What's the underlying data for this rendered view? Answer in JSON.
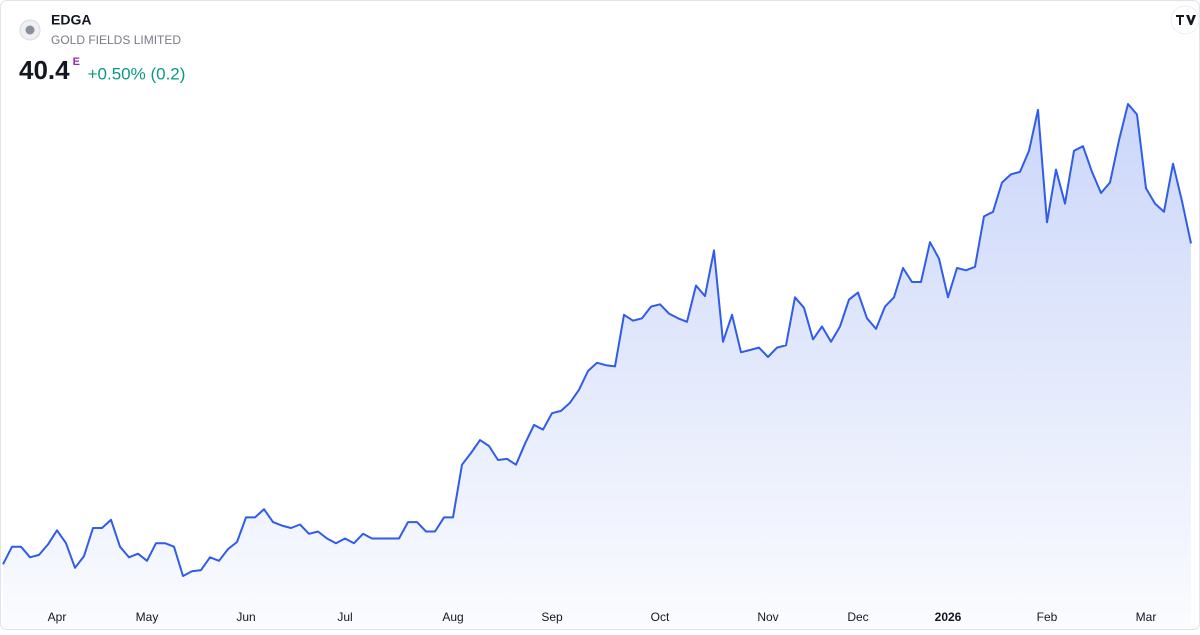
{
  "chart_data": {
    "type": "area",
    "title": "EDGA",
    "subtitle": "GOLD FIELDS LIMITED",
    "price_flag": "E",
    "change_label": "+0.50% (0.2)",
    "color": "#2f5ce8",
    "categories": [
      null,
      null,
      null,
      null,
      null,
      null,
      "Apr",
      null,
      null,
      null,
      null,
      null,
      null,
      null,
      null,
      null,
      "May",
      null,
      null,
      null,
      null,
      null,
      null,
      null,
      null,
      null,
      null,
      "Jun",
      null,
      null,
      null,
      null,
      null,
      null,
      null,
      null,
      null,
      null,
      "Jul",
      null,
      null,
      null,
      null,
      null,
      null,
      null,
      null,
      null,
      null,
      null,
      "Aug",
      null,
      null,
      null,
      null,
      null,
      null,
      null,
      null,
      null,
      null,
      "Sep",
      null,
      null,
      null,
      null,
      null,
      null,
      null,
      null,
      null,
      null,
      null,
      "Oct",
      null,
      null,
      null,
      null,
      null,
      null,
      null,
      null,
      null,
      null,
      null,
      "Nov",
      null,
      null,
      null,
      null,
      null,
      null,
      null,
      null,
      null,
      "Dec",
      null,
      null,
      null,
      null,
      null,
      null,
      null,
      null,
      null,
      "2026",
      null,
      null,
      null,
      null,
      null,
      null,
      null,
      null,
      null,
      null,
      "Feb",
      null,
      null,
      null,
      null,
      null,
      null,
      null,
      null,
      null,
      null,
      "Mar",
      null,
      null,
      null,
      null,
      null
    ],
    "values": [
      13.0,
      14.5,
      14.5,
      13.6,
      13.8,
      14.7,
      15.9,
      14.8,
      12.7,
      13.7,
      16.1,
      16.1,
      16.8,
      14.5,
      13.6,
      13.9,
      13.3,
      14.8,
      14.8,
      14.5,
      12.0,
      12.4,
      12.5,
      13.6,
      13.3,
      14.3,
      14.9,
      17.0,
      17.0,
      17.7,
      16.6,
      16.3,
      16.1,
      16.4,
      15.6,
      15.8,
      15.2,
      14.8,
      15.2,
      14.8,
      15.6,
      15.2,
      15.2,
      15.2,
      15.2,
      16.6,
      16.6,
      15.8,
      15.8,
      17.0,
      17.0,
      21.5,
      22.5,
      23.6,
      23.1,
      21.9,
      22.0,
      21.5,
      23.3,
      24.9,
      24.5,
      25.9,
      26.1,
      26.8,
      27.9,
      29.5,
      30.2,
      30.0,
      29.9,
      34.3,
      33.8,
      34.0,
      35.0,
      35.2,
      34.4,
      34.0,
      33.7,
      36.8,
      35.9,
      39.8,
      32.0,
      34.3,
      31.1,
      31.3,
      31.5,
      30.7,
      31.5,
      31.7,
      35.8,
      34.9,
      32.2,
      33.3,
      32.0,
      33.3,
      35.6,
      36.2,
      34.0,
      33.1,
      35.0,
      35.8,
      38.3,
      37.1,
      37.1,
      40.5,
      39.1,
      35.8,
      38.3,
      38.1,
      38.4,
      42.7,
      43.1,
      45.6,
      46.3,
      46.5,
      48.3,
      51.8,
      42.2,
      46.7,
      43.8,
      48.3,
      48.7,
      46.5,
      44.7,
      45.6,
      49.2,
      52.3,
      51.4,
      45.1,
      43.8,
      43.1,
      47.2,
      44.0,
      40.4
    ]
  }
}
